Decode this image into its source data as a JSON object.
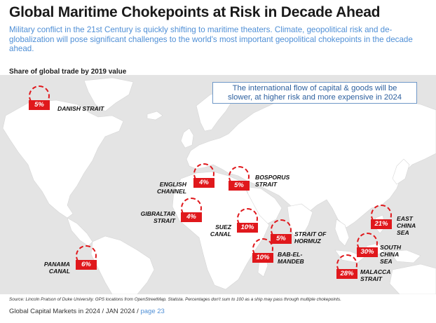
{
  "title": "Global Maritime Chokepoints at Risk in Decade Ahead",
  "subtitle": "Military conflict in the 21st Century is quickly shifting to maritime theaters.  Climate, geopolitical risk and de-globalization will pose significant challenges to the world's most important geopolitical chokepoints in the decade ahead.",
  "share_label": "Share of global trade by 2019 value",
  "callout": {
    "line1": "The international flow of capital & goods will be",
    "line2": "slower, at higher risk and more expensive in 2024"
  },
  "colors": {
    "accent_red": "#e0181c",
    "accent_blue": "#4f8fd6",
    "land": "#ffffff",
    "sea": "#e4e4e4"
  },
  "chokepoints": [
    {
      "id": "danish",
      "value": "5%",
      "label_lines": [
        "DANISH STRAIT"
      ]
    },
    {
      "id": "english",
      "value": "4%",
      "label_lines": [
        "ENGLISH",
        "CHANNEL"
      ]
    },
    {
      "id": "bosporus",
      "value": "5%",
      "label_lines": [
        "BOSPORUS",
        "STRAIT"
      ]
    },
    {
      "id": "gibraltar",
      "value": "4%",
      "label_lines": [
        "GIBRALTAR",
        "STRAIT"
      ]
    },
    {
      "id": "suez",
      "value": "10%",
      "label_lines": [
        "SUEZ",
        "CANAL"
      ]
    },
    {
      "id": "hormuz",
      "value": "5%",
      "label_lines": [
        "STRAIT OF",
        "HORMUZ"
      ]
    },
    {
      "id": "babelmandeb",
      "value": "10%",
      "label_lines": [
        "BAB-EL-",
        "MANDEB"
      ]
    },
    {
      "id": "panama",
      "value": "6%",
      "label_lines": [
        "PANAMA",
        "CANAL"
      ]
    },
    {
      "id": "eastchina",
      "value": "21%",
      "label_lines": [
        "EAST",
        "CHINA",
        "SEA"
      ]
    },
    {
      "id": "southchina",
      "value": "30%",
      "label_lines": [
        "SOUTH",
        "CHINA",
        "SEA"
      ]
    },
    {
      "id": "malacca",
      "value": "28%",
      "label_lines": [
        "MALACCA",
        "STRAIT"
      ]
    }
  ],
  "source": "Source: Lincoln Pratson of Duke University. GPS locations from OpenStreetMap. Statista. Percentages don't sum to 100 as a ship may pass through multiple chokepoints.",
  "footer": {
    "text": "Global Capital Markets in 2024 / JAN 2024 / ",
    "page": "page 23"
  }
}
